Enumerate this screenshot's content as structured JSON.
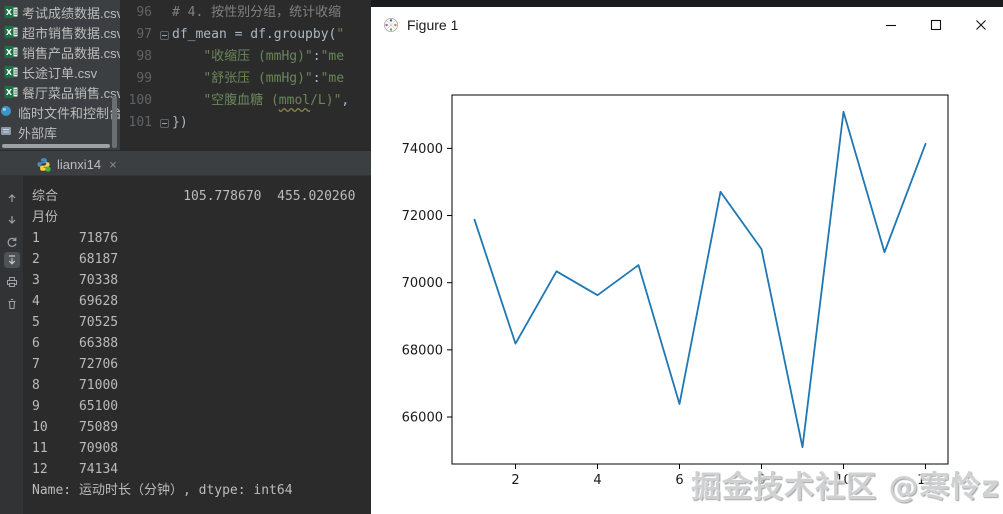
{
  "project_panel": {
    "items": [
      {
        "label": "考试成绩数据.csv",
        "icon": "excel-file-icon",
        "indent": 4
      },
      {
        "label": "超市销售数据.csv",
        "icon": "excel-file-icon",
        "indent": 4
      },
      {
        "label": "销售产品数据.csv",
        "icon": "excel-file-icon",
        "indent": 4
      },
      {
        "label": "长途订单.csv",
        "icon": "excel-file-icon",
        "indent": 4
      },
      {
        "label": "餐厅菜品销售.csv",
        "icon": "excel-file-icon",
        "indent": 4
      },
      {
        "label": "临时文件和控制台",
        "icon": "scratch-console-icon",
        "indent": 0
      },
      {
        "label": "外部库",
        "icon": "library-icon",
        "indent": -4
      }
    ]
  },
  "editor": {
    "lines": [
      {
        "num": "96",
        "fold": false,
        "segments": [
          {
            "t": "# 4. 按性别分组，统计收缩",
            "c": "comment"
          }
        ]
      },
      {
        "num": "97",
        "fold": true,
        "segments": [
          {
            "t": "df_mean = df.groupby(",
            "c": "code"
          },
          {
            "t": "\"",
            "c": "string"
          }
        ]
      },
      {
        "num": "98",
        "fold": false,
        "segments": [
          {
            "t": "    ",
            "c": "code"
          },
          {
            "t": "\"收缩压 (mmHg)\"",
            "c": "string"
          },
          {
            "t": ":",
            "c": "code"
          },
          {
            "t": "\"me",
            "c": "string"
          }
        ]
      },
      {
        "num": "99",
        "fold": false,
        "segments": [
          {
            "t": "    ",
            "c": "code"
          },
          {
            "t": "\"舒张压 (mmHg)\"",
            "c": "string"
          },
          {
            "t": ":",
            "c": "code"
          },
          {
            "t": "\"me",
            "c": "string"
          }
        ]
      },
      {
        "num": "100",
        "fold": false,
        "segments": [
          {
            "t": "    ",
            "c": "code"
          },
          {
            "t": "\"空腹血糖 (",
            "c": "string"
          },
          {
            "t": "mmol",
            "c": "string warn"
          },
          {
            "t": "/L)\"",
            "c": "string"
          },
          {
            "t": ",",
            "c": "code"
          }
        ]
      },
      {
        "num": "101",
        "fold": true,
        "segments": [
          {
            "t": "})",
            "c": "code"
          }
        ]
      }
    ]
  },
  "run_tool": {
    "tab_label": "lianxi14",
    "tab_icon": "python-run-icon",
    "close_glyph": "×",
    "gutter_icons": [
      {
        "name": "step-up-icon",
        "active": false
      },
      {
        "name": "step-down-icon",
        "active": false
      },
      {
        "name": "rerun-icon",
        "active": false
      },
      {
        "name": "scroll-to-end-icon",
        "active": true
      },
      {
        "name": "print-icon",
        "active": false
      },
      {
        "name": "clear-output-icon",
        "active": false
      }
    ]
  },
  "console": {
    "lines": [
      "综合                105.778670  455.020260",
      "月份",
      "1     71876",
      "2     68187",
      "3     70338",
      "4     69628",
      "5     70525",
      "6     66388",
      "7     72706",
      "8     71000",
      "9     65100",
      "10    75089",
      "11    70908",
      "12    74134",
      "Name: 运动时长（分钟）, dtype: int64"
    ]
  },
  "figure": {
    "title": "Figure 1",
    "watermark": "掘金技术社区 @寒怜z"
  },
  "chart_data": {
    "type": "line",
    "x": [
      1,
      2,
      3,
      4,
      5,
      6,
      7,
      8,
      9,
      10,
      11,
      12
    ],
    "y": [
      71876,
      68187,
      70338,
      69628,
      70525,
      66388,
      72706,
      71000,
      65100,
      75089,
      70908,
      74134
    ],
    "title": "",
    "xlabel": "",
    "ylabel": "",
    "xticks": [
      2,
      4,
      6,
      8,
      10,
      12
    ],
    "yticks": [
      66000,
      68000,
      70000,
      72000,
      74000
    ],
    "xlim": [
      0.45,
      12.55
    ],
    "ylim": [
      64600,
      75590
    ],
    "grid": false,
    "legend": null,
    "line_color": "#1f77b4",
    "axis_color": "#000000"
  }
}
